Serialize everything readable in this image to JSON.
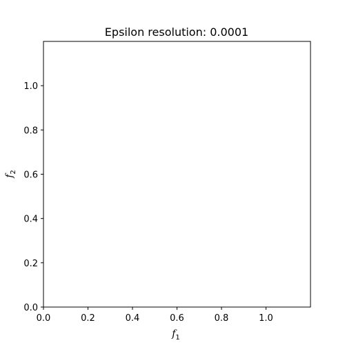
{
  "chart_data": {
    "type": "scatter",
    "title": "Epsilon resolution: 0.0001",
    "xlabel": {
      "base": "f",
      "sub": "1"
    },
    "ylabel": {
      "base": "f",
      "sub": "2"
    },
    "xlim": [
      0.0,
      1.2
    ],
    "ylim": [
      0.0,
      1.2
    ],
    "xticks": [
      "0.0",
      "0.2",
      "0.4",
      "0.6",
      "0.8",
      "1.0"
    ],
    "yticks": [
      "0.0",
      "0.2",
      "0.4",
      "0.6",
      "0.8",
      "1.0"
    ],
    "grid": false,
    "series": []
  }
}
